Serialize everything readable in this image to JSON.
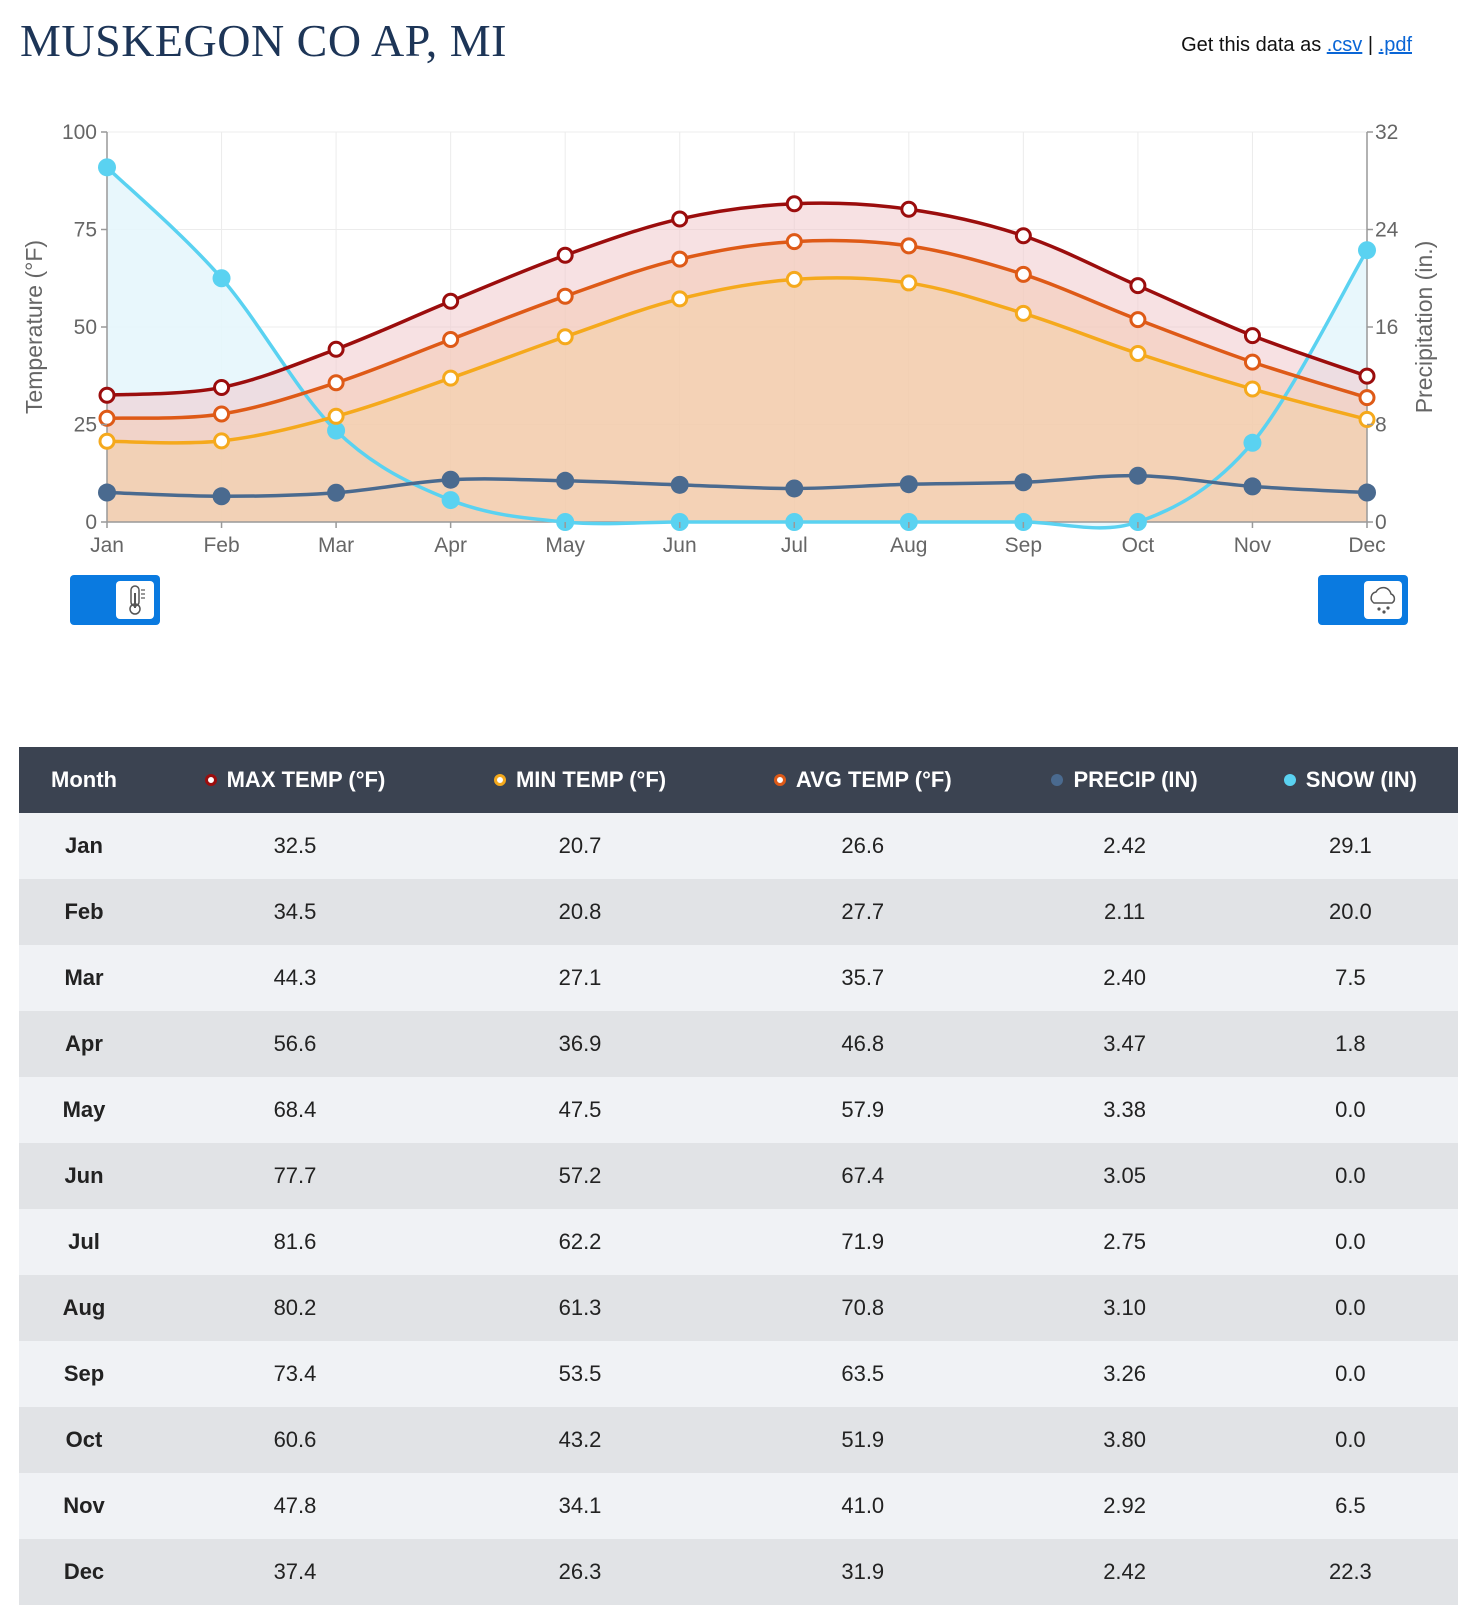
{
  "title": "MUSKEGON CO AP, MI",
  "export": {
    "prefix": "Get this data as",
    "csv": ".csv",
    "separator": "|",
    "pdf": ".pdf"
  },
  "toggles": {
    "left_icon": "thermometer-icon",
    "right_icon": "precipitation-cloud-icon",
    "color": "#0a7ae0"
  },
  "chart_data": {
    "type": "line",
    "categories": [
      "Jan",
      "Feb",
      "Mar",
      "Apr",
      "May",
      "Jun",
      "Jul",
      "Aug",
      "Sep",
      "Oct",
      "Nov",
      "Dec"
    ],
    "y_left": {
      "label": "Temperature (°F)",
      "range": [
        0,
        100
      ],
      "ticks": [
        "0",
        "25",
        "50",
        "75",
        "100"
      ]
    },
    "y_right": {
      "label": "Precipitation (in.)",
      "range": [
        0,
        32
      ],
      "ticks": [
        "0",
        "8",
        "16",
        "24",
        "32"
      ]
    },
    "series": [
      {
        "key": "max",
        "axis": "left",
        "color": "#9b0d0d",
        "fill": "#f0c8cc",
        "values": [
          32.5,
          34.5,
          44.3,
          56.6,
          68.4,
          77.7,
          81.6,
          80.2,
          73.4,
          60.6,
          47.8,
          37.4
        ]
      },
      {
        "key": "avg",
        "axis": "left",
        "color": "#de5a17",
        "fill": "#f4cbb4",
        "values": [
          26.6,
          27.7,
          35.7,
          46.8,
          57.9,
          67.4,
          71.9,
          70.8,
          63.5,
          51.9,
          41.0,
          31.9
        ]
      },
      {
        "key": "min",
        "axis": "left",
        "color": "#f5a91c",
        "fill": "#f3cfa6",
        "values": [
          20.7,
          20.8,
          27.1,
          36.9,
          47.5,
          57.2,
          62.2,
          61.3,
          53.5,
          43.2,
          34.1,
          26.3
        ]
      },
      {
        "key": "snow",
        "axis": "right",
        "color": "#5ad2f1",
        "fill": "#e6f6fc",
        "values": [
          29.1,
          20.0,
          7.5,
          1.8,
          0.0,
          0.0,
          0.0,
          0.0,
          0.0,
          0.0,
          6.5,
          22.3
        ]
      },
      {
        "key": "precip",
        "axis": "right",
        "color": "#4a6a8f",
        "fill": "",
        "values": [
          2.42,
          2.11,
          2.4,
          3.47,
          3.38,
          3.05,
          2.75,
          3.1,
          3.26,
          3.8,
          2.92,
          2.42
        ]
      }
    ],
    "grid": true
  },
  "table": {
    "headers": [
      "Month",
      "MAX TEMP (°F)",
      "MIN TEMP (°F)",
      "AVG TEMP (°F)",
      "PRECIP (IN)",
      "SNOW (IN)"
    ],
    "header_dots": [
      "",
      "#9b0d0d",
      "#f5a91c",
      "#de5a17",
      "#4a6a8f",
      "#5ad2f1"
    ],
    "rows": [
      [
        "Jan",
        "32.5",
        "20.7",
        "26.6",
        "2.42",
        "29.1"
      ],
      [
        "Feb",
        "34.5",
        "20.8",
        "27.7",
        "2.11",
        "20.0"
      ],
      [
        "Mar",
        "44.3",
        "27.1",
        "35.7",
        "2.40",
        "7.5"
      ],
      [
        "Apr",
        "56.6",
        "36.9",
        "46.8",
        "3.47",
        "1.8"
      ],
      [
        "May",
        "68.4",
        "47.5",
        "57.9",
        "3.38",
        "0.0"
      ],
      [
        "Jun",
        "77.7",
        "57.2",
        "67.4",
        "3.05",
        "0.0"
      ],
      [
        "Jul",
        "81.6",
        "62.2",
        "71.9",
        "2.75",
        "0.0"
      ],
      [
        "Aug",
        "80.2",
        "61.3",
        "70.8",
        "3.10",
        "0.0"
      ],
      [
        "Sep",
        "73.4",
        "53.5",
        "63.5",
        "3.26",
        "0.0"
      ],
      [
        "Oct",
        "60.6",
        "43.2",
        "51.9",
        "3.80",
        "0.0"
      ],
      [
        "Nov",
        "47.8",
        "34.1",
        "41.0",
        "2.92",
        "6.5"
      ],
      [
        "Dec",
        "37.4",
        "26.3",
        "31.9",
        "2.42",
        "22.3"
      ]
    ]
  }
}
